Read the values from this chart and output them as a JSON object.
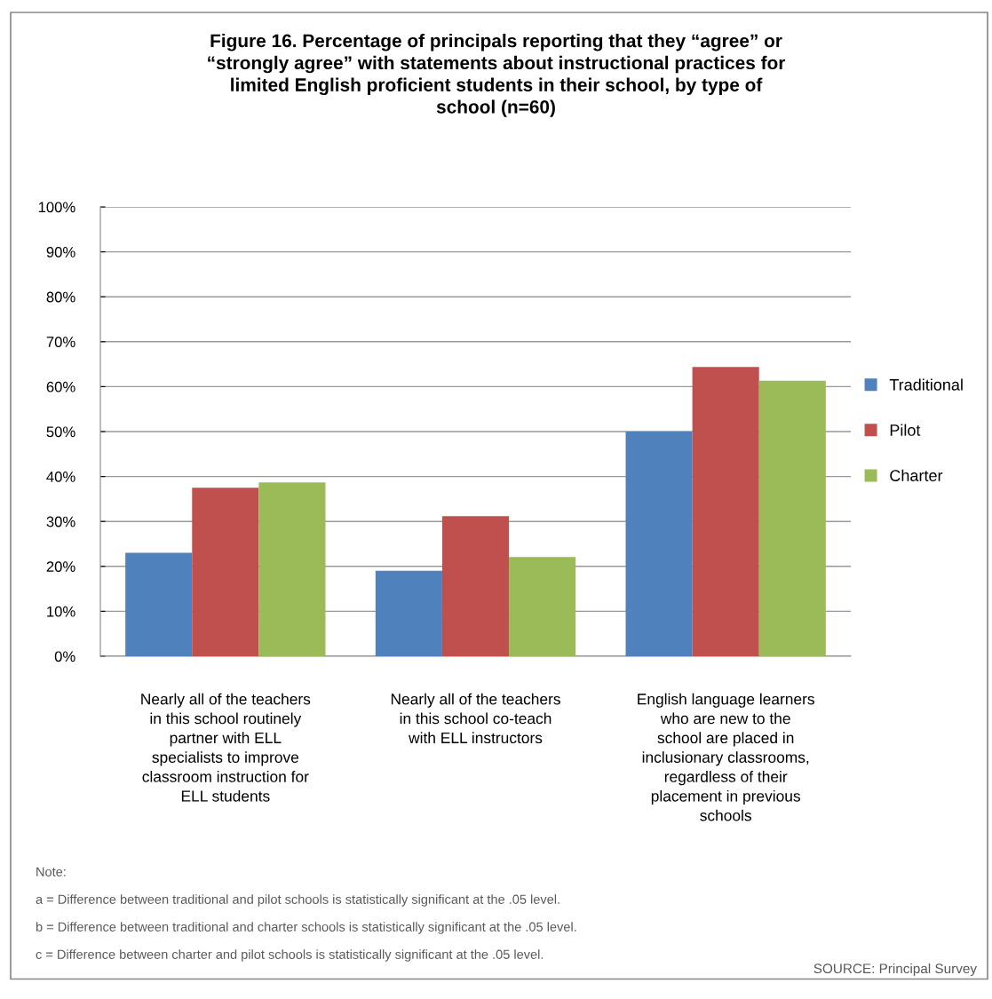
{
  "chart_data": {
    "type": "bar",
    "title": "Figure 16. Percentage of principals reporting that they “agree” or\n“strongly agree” with statements about instructional practices for\nlimited English proficient students in their school, by type of\nschool (n=60)",
    "categories": [
      "Nearly all of the teachers\nin this school routinely\npartner with ELL\nspecialists to improve\nclassroom instruction for\nELL students",
      "Nearly all of the teachers\nin this school co-teach\nwith ELL instructors",
      "English language learners\nwho are new to the\nschool are placed in\ninclusionary classrooms,\nregardless of their\nplacement in previous\nschools"
    ],
    "series": [
      {
        "name": "Traditional",
        "color": "#4f81bd",
        "values": [
          23,
          19,
          50
        ]
      },
      {
        "name": "Pilot",
        "color": "#c0504d",
        "values": [
          37.5,
          31.2,
          64.4
        ]
      },
      {
        "name": "Charter",
        "color": "#9bbb59",
        "values": [
          38.7,
          22.1,
          61.3
        ]
      }
    ],
    "ylim": [
      0,
      100
    ],
    "yticks": [
      {
        "value": 0,
        "label": "0%"
      },
      {
        "value": 10,
        "label": "10%"
      },
      {
        "value": 20,
        "label": "20%"
      },
      {
        "value": 30,
        "label": "30%"
      },
      {
        "value": 40,
        "label": "40%"
      },
      {
        "value": 50,
        "label": "50%"
      },
      {
        "value": 60,
        "label": "60%"
      },
      {
        "value": 70,
        "label": "70%"
      },
      {
        "value": 80,
        "label": "80%"
      },
      {
        "value": 90,
        "label": "90%"
      },
      {
        "value": 100,
        "label": "100%"
      }
    ],
    "grid": "y",
    "legend": "right",
    "annotations": [
      "Note:",
      "a = Difference between traditional and pilot schools is statistically significant at the .05 level.",
      "b = Difference between traditional and charter schools is statistically significant at the .05 level.",
      "c = Difference between charter and pilot schools is statistically significant at the .05 level.",
      "SOURCE: Principal Survey"
    ]
  }
}
